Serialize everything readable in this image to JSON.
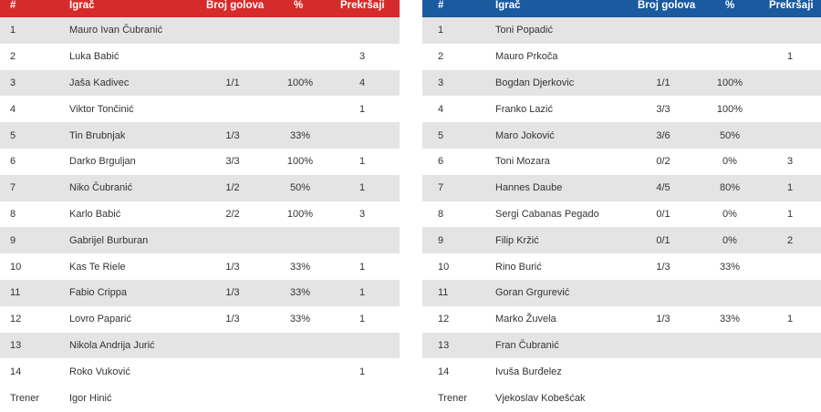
{
  "headers": {
    "num": "#",
    "player": "Igrač",
    "goals": "Broj golova",
    "pct": "%",
    "fouls": "Prekršaji"
  },
  "colors": {
    "home_header": "#d52b2b",
    "away_header": "#1a5a9e",
    "stripe": "#e4e4e4"
  },
  "home": {
    "rows": [
      {
        "num": "1",
        "name": "Mauro Ivan Čubranić",
        "goals": "",
        "pct": "",
        "fouls": ""
      },
      {
        "num": "2",
        "name": "Luka Babić",
        "goals": "",
        "pct": "",
        "fouls": "3"
      },
      {
        "num": "3",
        "name": "Jaša Kadivec",
        "goals": "1/1",
        "pct": "100%",
        "fouls": "4"
      },
      {
        "num": "4",
        "name": "Viktor Tončinić",
        "goals": "",
        "pct": "",
        "fouls": "1"
      },
      {
        "num": "5",
        "name": "Tin Brubnjak",
        "goals": "1/3",
        "pct": "33%",
        "fouls": ""
      },
      {
        "num": "6",
        "name": "Darko Brguljan",
        "goals": "3/3",
        "pct": "100%",
        "fouls": "1"
      },
      {
        "num": "7",
        "name": "Niko Čubranić",
        "goals": "1/2",
        "pct": "50%",
        "fouls": "1"
      },
      {
        "num": "8",
        "name": "Karlo Babić",
        "goals": "2/2",
        "pct": "100%",
        "fouls": "3"
      },
      {
        "num": "9",
        "name": "Gabrijel Burburan",
        "goals": "",
        "pct": "",
        "fouls": ""
      },
      {
        "num": "10",
        "name": "Kas Te Riele",
        "goals": "1/3",
        "pct": "33%",
        "fouls": "1"
      },
      {
        "num": "11",
        "name": "Fabio Crippa",
        "goals": "1/3",
        "pct": "33%",
        "fouls": "1"
      },
      {
        "num": "12",
        "name": "Lovro Paparić",
        "goals": "1/3",
        "pct": "33%",
        "fouls": "1"
      },
      {
        "num": "13",
        "name": "Nikola Andrija Jurić",
        "goals": "",
        "pct": "",
        "fouls": ""
      },
      {
        "num": "14",
        "name": "Roko Vuković",
        "goals": "",
        "pct": "",
        "fouls": "1"
      }
    ],
    "coach_label": "Trener",
    "coach_name": "Igor Hinić"
  },
  "away": {
    "rows": [
      {
        "num": "1",
        "name": "Toni Popadić",
        "goals": "",
        "pct": "",
        "fouls": ""
      },
      {
        "num": "2",
        "name": "Mauro Prkoča",
        "goals": "",
        "pct": "",
        "fouls": "1"
      },
      {
        "num": "3",
        "name": "Bogdan Djerkovic",
        "goals": "1/1",
        "pct": "100%",
        "fouls": ""
      },
      {
        "num": "4",
        "name": "Franko Lazić",
        "goals": "3/3",
        "pct": "100%",
        "fouls": ""
      },
      {
        "num": "5",
        "name": "Maro Joković",
        "goals": "3/6",
        "pct": "50%",
        "fouls": ""
      },
      {
        "num": "6",
        "name": "Toni Mozara",
        "goals": "0/2",
        "pct": "0%",
        "fouls": "3"
      },
      {
        "num": "7",
        "name": "Hannes Daube",
        "goals": "4/5",
        "pct": "80%",
        "fouls": "1"
      },
      {
        "num": "8",
        "name": "Sergi Cabanas Pegado",
        "goals": "0/1",
        "pct": "0%",
        "fouls": "1"
      },
      {
        "num": "9",
        "name": "Filip Kržić",
        "goals": "0/1",
        "pct": "0%",
        "fouls": "2"
      },
      {
        "num": "10",
        "name": "Rino Burić",
        "goals": "1/3",
        "pct": "33%",
        "fouls": ""
      },
      {
        "num": "11",
        "name": "Goran Grgurević",
        "goals": "",
        "pct": "",
        "fouls": ""
      },
      {
        "num": "12",
        "name": "Marko Žuvela",
        "goals": "1/3",
        "pct": "33%",
        "fouls": "1"
      },
      {
        "num": "13",
        "name": "Fran Čubranić",
        "goals": "",
        "pct": "",
        "fouls": ""
      },
      {
        "num": "14",
        "name": "Ivuša Burđelez",
        "goals": "",
        "pct": "",
        "fouls": ""
      }
    ],
    "coach_label": "Trener",
    "coach_name": "Vjekoslav Kobešćak"
  }
}
